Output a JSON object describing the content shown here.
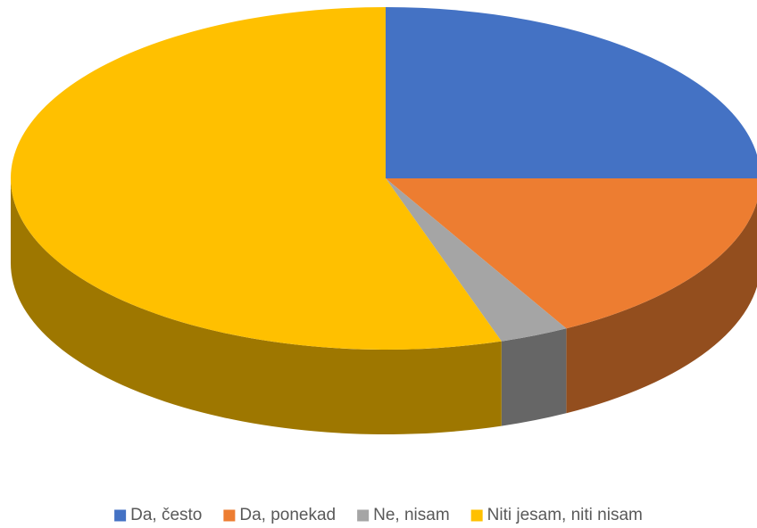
{
  "chart_data": {
    "type": "pie",
    "categories": [
      "Da, često",
      "Da, ponekad",
      "Ne, nisam",
      "Niti jesam, niti nisam"
    ],
    "values": [
      25,
      17,
      3,
      55
    ],
    "colors": [
      "#4472c4",
      "#ed7d31",
      "#a5a5a5",
      "#ffc000"
    ],
    "legend": "bottom"
  }
}
